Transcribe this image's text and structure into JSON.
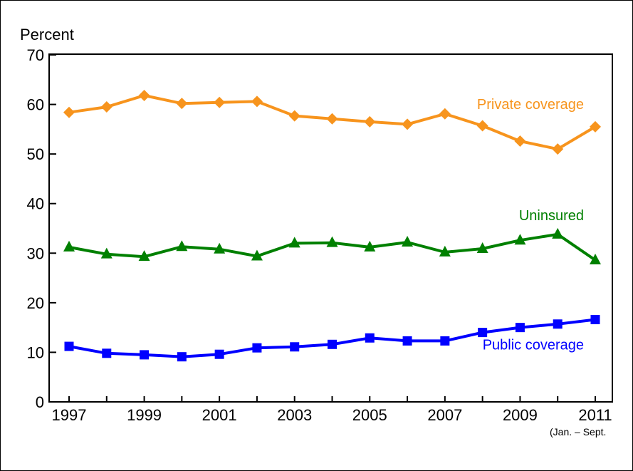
{
  "chart_data": {
    "type": "line",
    "ylabel": "Percent",
    "ylim": [
      0,
      70
    ],
    "yticks": [
      0,
      10,
      20,
      30,
      40,
      50,
      60,
      70
    ],
    "x": [
      1997,
      1998,
      1999,
      2000,
      2001,
      2002,
      2003,
      2004,
      2005,
      2006,
      2007,
      2008,
      2009,
      2010,
      2011
    ],
    "xlim": [
      1997,
      2011
    ],
    "xticks": [
      1997,
      1999,
      2001,
      2003,
      2005,
      2007,
      2009,
      2011
    ],
    "xtick_labels": [
      "1997",
      "1999",
      "2001",
      "2003",
      "2005",
      "2007",
      "2009",
      "2011"
    ],
    "x_note": "(Jan. – Sept.",
    "series": [
      {
        "name": "Private coverage",
        "color": "#F7941D",
        "marker": "diamond",
        "values": [
          58.4,
          59.5,
          61.8,
          60.2,
          60.4,
          60.6,
          57.7,
          57.1,
          56.5,
          56.0,
          58.1,
          55.7,
          52.6,
          51.0,
          55.5
        ]
      },
      {
        "name": "Uninsured",
        "color": "#008000",
        "marker": "triangle",
        "values": [
          31.2,
          29.8,
          29.3,
          31.3,
          30.8,
          29.4,
          32.0,
          32.1,
          31.2,
          32.2,
          30.2,
          30.9,
          32.6,
          33.8,
          28.6
        ]
      },
      {
        "name": "Public coverage",
        "color": "#0000FF",
        "marker": "square",
        "values": [
          11.2,
          9.8,
          9.5,
          9.1,
          9.6,
          10.9,
          11.1,
          11.6,
          12.9,
          12.3,
          12.3,
          14.0,
          15.0,
          15.7,
          16.6
        ]
      }
    ],
    "grid": false,
    "legend": "inline labels near series ends"
  }
}
